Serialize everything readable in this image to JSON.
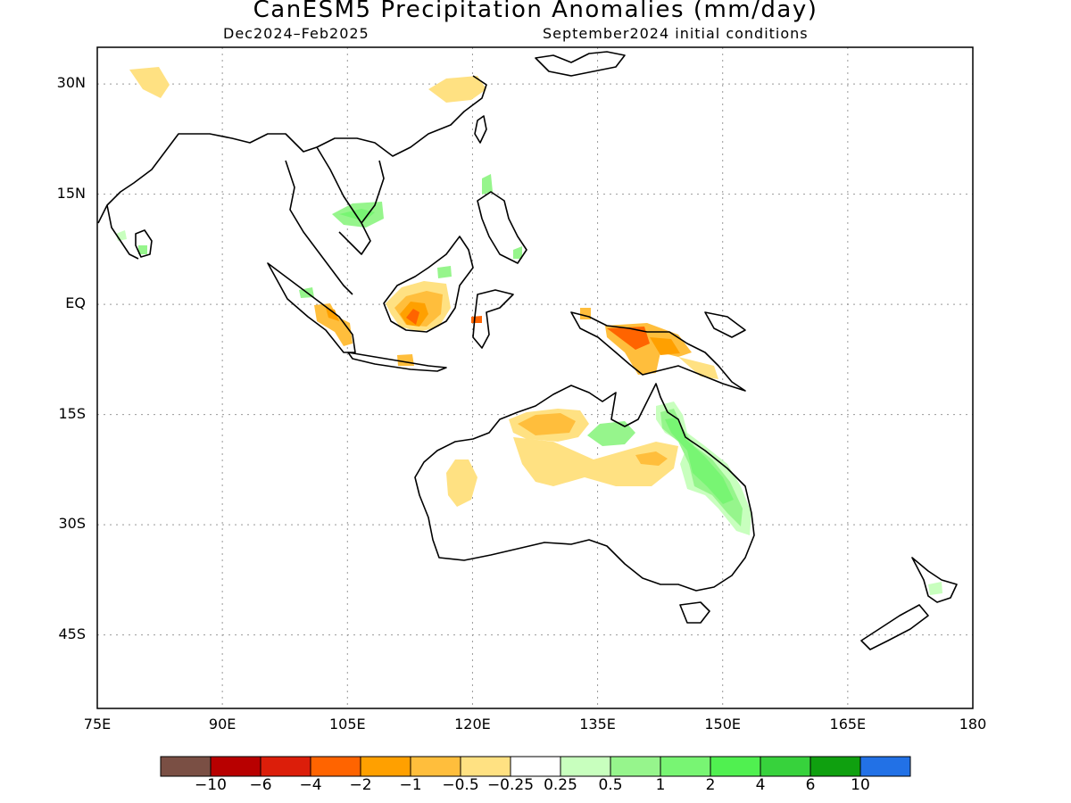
{
  "title": "CanESM5 Precipitation Anomalies (mm/day)",
  "subtitle_left": "Dec2024–Feb2025",
  "subtitle_right": "September2024 initial conditions",
  "map": {
    "lon_range": [
      75,
      180
    ],
    "lat_range": [
      -55,
      35
    ],
    "lat_ticks": [
      {
        "value": 30,
        "label": "30N"
      },
      {
        "value": 15,
        "label": "15N"
      },
      {
        "value": 0,
        "label": "EQ"
      },
      {
        "value": -15,
        "label": "15S"
      },
      {
        "value": -30,
        "label": "30S"
      },
      {
        "value": -45,
        "label": "45S"
      }
    ],
    "lon_ticks": [
      {
        "value": 75,
        "label": "75E"
      },
      {
        "value": 90,
        "label": "90E"
      },
      {
        "value": 105,
        "label": "105E"
      },
      {
        "value": 120,
        "label": "120E"
      },
      {
        "value": 135,
        "label": "135E"
      },
      {
        "value": 150,
        "label": "150E"
      },
      {
        "value": 165,
        "label": "165E"
      },
      {
        "value": 180,
        "label": "180"
      }
    ],
    "grid": true
  },
  "colorbar": {
    "colors": [
      "#7a4f44",
      "#b80000",
      "#dc1e0a",
      "#ff6400",
      "#ffa000",
      "#ffbe3c",
      "#ffe182",
      "#ffffff",
      "#c8ffbe",
      "#96f58c",
      "#78f573",
      "#50f050",
      "#37d23c",
      "#0fa00f",
      "#2271e6"
    ],
    "labels": [
      "−10",
      "−6",
      "−4",
      "−2",
      "−1",
      "−0.5",
      "−0.25",
      "0.25",
      "0.5",
      "1",
      "2",
      "4",
      "6",
      "10"
    ]
  }
}
